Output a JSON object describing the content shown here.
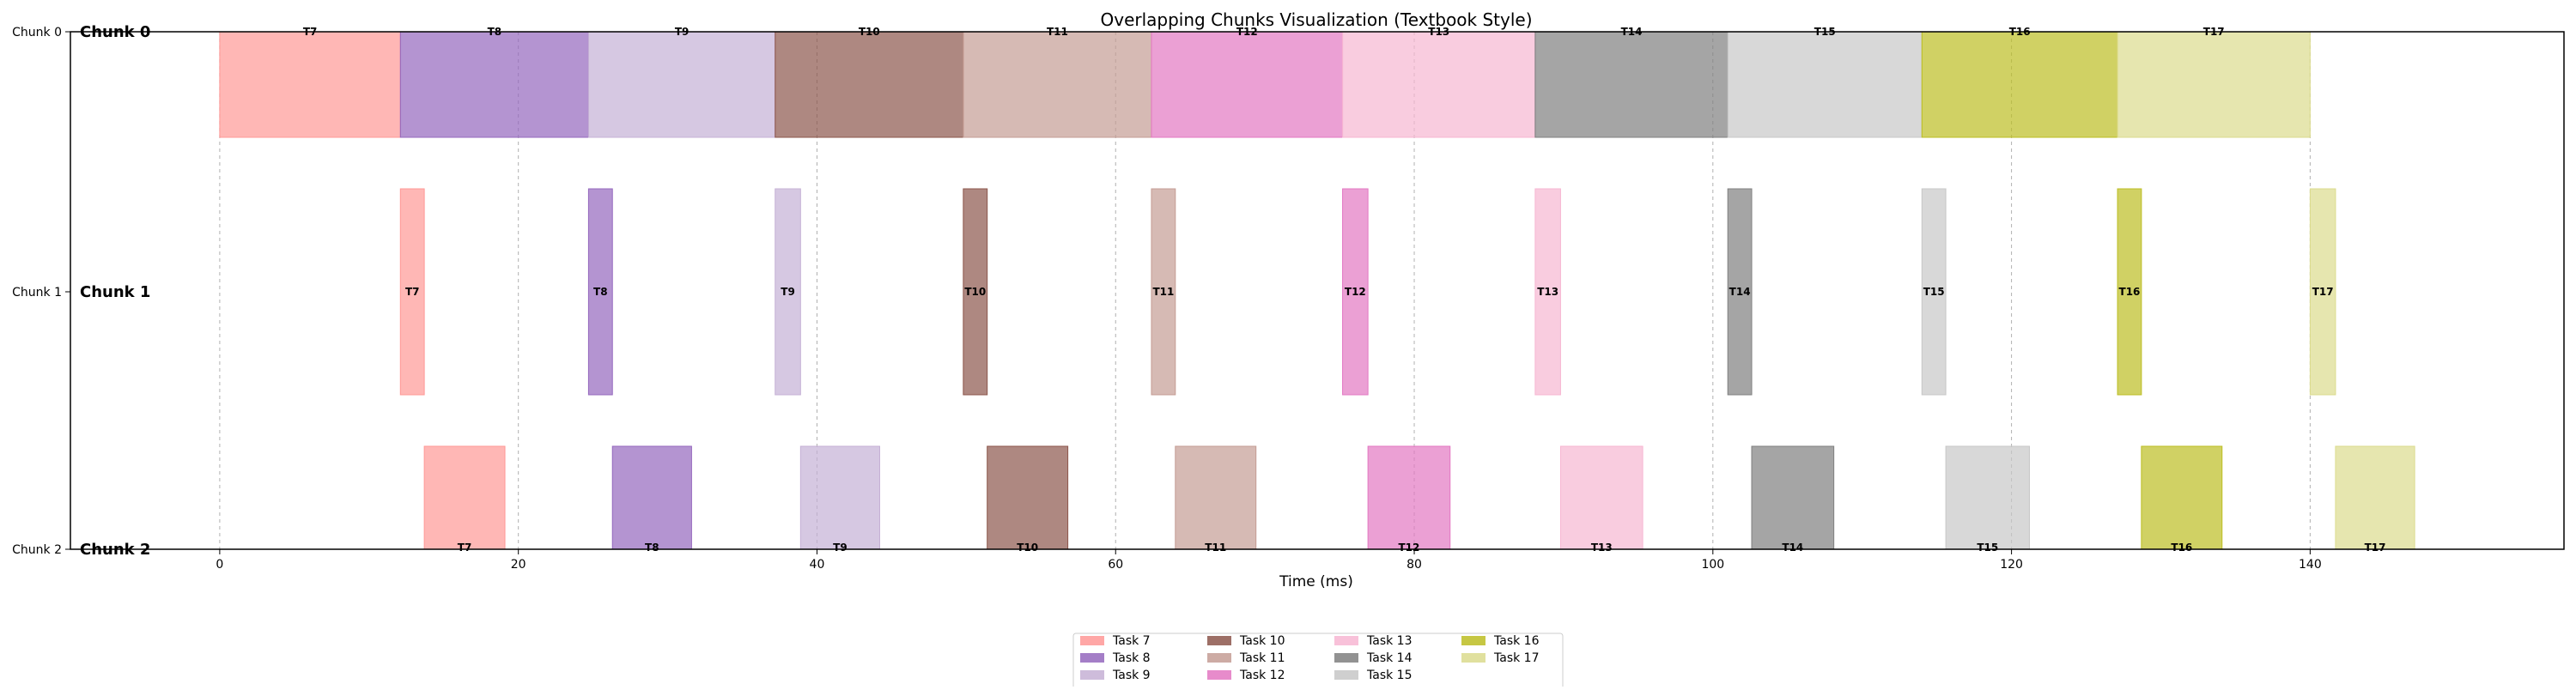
{
  "chart_data": {
    "type": "bar",
    "title": "Overlapping Chunks Visualization (Textbook Style)",
    "xlabel": "Time (ms)",
    "ylabel": "",
    "xlim": [
      -10,
      157
    ],
    "xticks": [
      0,
      20,
      40,
      60,
      80,
      100,
      120,
      140
    ],
    "grid": "vertical dashed",
    "legend_position": "bottom-center",
    "rows": [
      {
        "id": "chunk0",
        "tick_label": "Chunk 0",
        "title": "Chunk 0",
        "bar_label_position": "top"
      },
      {
        "id": "chunk1",
        "tick_label": "Chunk 1",
        "title": "Chunk 1",
        "bar_label_position": "middle"
      },
      {
        "id": "chunk2",
        "tick_label": "Chunk 2",
        "title": "Chunk 2",
        "bar_label_position": "bottom"
      }
    ],
    "series": [
      {
        "name": "Task 7",
        "label": "T7",
        "color": "#ff9896",
        "segments": [
          [
            0.0,
            12.1
          ],
          [
            12.1,
            13.7
          ],
          [
            13.7,
            19.1
          ]
        ]
      },
      {
        "name": "Task 8",
        "label": "T8",
        "color": "#9467bd",
        "segments": [
          [
            12.1,
            24.7
          ],
          [
            24.7,
            26.3
          ],
          [
            26.3,
            31.6
          ]
        ]
      },
      {
        "name": "Task 9",
        "label": "T9",
        "color": "#c5b0d5",
        "segments": [
          [
            24.7,
            37.2
          ],
          [
            37.2,
            38.9
          ],
          [
            38.9,
            44.2
          ]
        ]
      },
      {
        "name": "Task 10",
        "label": "T10",
        "color": "#8c564b",
        "segments": [
          [
            37.2,
            49.8
          ],
          [
            49.8,
            51.4
          ],
          [
            51.4,
            56.8
          ]
        ]
      },
      {
        "name": "Task 11",
        "label": "T11",
        "color": "#c49c94",
        "segments": [
          [
            49.8,
            62.4
          ],
          [
            62.4,
            64.0
          ],
          [
            64.0,
            69.4
          ]
        ]
      },
      {
        "name": "Task 12",
        "label": "T12",
        "color": "#e377c2",
        "segments": [
          [
            62.4,
            75.2
          ],
          [
            75.2,
            76.9
          ],
          [
            76.9,
            82.4
          ]
        ]
      },
      {
        "name": "Task 13",
        "label": "T13",
        "color": "#f7b6d2",
        "segments": [
          [
            75.2,
            88.1
          ],
          [
            88.1,
            89.8
          ],
          [
            89.8,
            95.3
          ]
        ]
      },
      {
        "name": "Task 14",
        "label": "T14",
        "color": "#7f7f7f",
        "segments": [
          [
            88.1,
            101.0
          ],
          [
            101.0,
            102.6
          ],
          [
            102.6,
            108.1
          ]
        ]
      },
      {
        "name": "Task 15",
        "label": "T15",
        "color": "#c7c7c7",
        "segments": [
          [
            101.0,
            114.0
          ],
          [
            114.0,
            115.6
          ],
          [
            115.6,
            121.2
          ]
        ]
      },
      {
        "name": "Task 16",
        "label": "T16",
        "color": "#bcbd22",
        "segments": [
          [
            114.0,
            127.1
          ],
          [
            127.1,
            128.7
          ],
          [
            128.7,
            134.1
          ]
        ]
      },
      {
        "name": "Task 17",
        "label": "T17",
        "color": "#dbdb8d",
        "segments": [
          [
            127.1,
            140.0
          ],
          [
            140.0,
            141.7
          ],
          [
            141.7,
            147.0
          ]
        ]
      }
    ]
  }
}
